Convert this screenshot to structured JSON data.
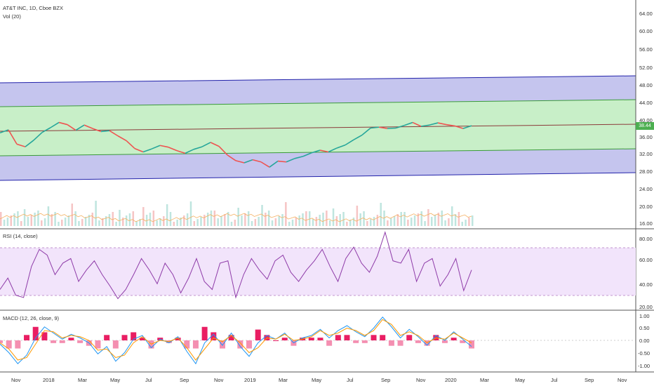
{
  "header": {
    "symbol_line": "AT&T INC, 1D, Cboe BZX",
    "volume_label": "Vol (20)"
  },
  "last_price": "38.44",
  "colors": {
    "outer_band": "#c5c5ee",
    "inner_band": "#c8efc8",
    "outer_line": "#2222aa",
    "inner_line": "#3a9a3a",
    "median_line": "#8b3a3a",
    "rsi_line": "#8e3ba8",
    "rsi_band": "#f2e4fb",
    "macd_line": "#2196f3",
    "signal_line": "#ff9800",
    "histogram": "#e91e63",
    "price_badge": "#4caf50"
  },
  "price_pane": {
    "axis_ticks": [
      "64.00",
      "60.00",
      "56.00",
      "52.00",
      "48.00",
      "44.00",
      "40.00",
      "36.00",
      "32.00",
      "28.00",
      "24.00",
      "20.00",
      "16.00"
    ],
    "ylim": [
      16,
      64
    ]
  },
  "rsi_pane": {
    "label": "RSI (14, close)",
    "axis_ticks": [
      "80.00",
      "60.00",
      "40.00",
      "20.00"
    ],
    "ylim": [
      20,
      80
    ]
  },
  "macd_pane": {
    "label": "MACD (12, 26, close, 9)",
    "axis_ticks": [
      "1.00",
      "0.50",
      "0.00",
      "-0.50",
      "-1.00"
    ],
    "ylim": [
      -1.2,
      1.1
    ]
  },
  "time_axis": {
    "labels": [
      "Nov",
      "2018",
      "Mar",
      "May",
      "Jul",
      "Sep",
      "Nov",
      "2019",
      "Mar",
      "May",
      "Jul",
      "Sep",
      "Nov",
      "2020",
      "Mar",
      "May",
      "Jul",
      "Sep",
      "Nov"
    ]
  },
  "chart_data": [
    {
      "type": "line",
      "title": "AT&T INC, 1D, Cboe BZX",
      "series": [
        {
          "values": [
            36.8,
            37.5,
            34.2,
            33.6,
            35.1,
            36.9,
            38.0,
            39.2,
            38.7,
            37.4,
            38.6,
            37.8,
            37.1,
            37.3,
            36.1,
            35.0,
            33.2,
            32.4,
            33.1,
            33.9,
            33.5,
            32.7,
            32.1,
            33.0,
            33.6,
            34.6,
            33.7,
            31.7,
            30.4,
            29.9,
            30.6,
            30.1,
            28.9,
            30.3,
            30.1,
            30.9,
            31.4,
            32.2,
            32.8,
            32.4,
            33.3,
            34.0,
            35.2,
            36.3,
            37.9,
            38.1,
            37.8,
            37.9,
            38.5,
            39.2,
            38.3,
            38.6,
            39.1,
            38.7,
            38.4,
            37.8,
            38.44
          ]
        }
      ],
      "ylim": [
        16,
        64
      ]
    },
    {
      "type": "line",
      "title": "RSI (14, close)",
      "series": [
        {
          "values": [
            35,
            45,
            30,
            28,
            55,
            70,
            65,
            48,
            58,
            62,
            42,
            52,
            60,
            48,
            38,
            27,
            35,
            48,
            62,
            52,
            40,
            58,
            48,
            32,
            45,
            62,
            42,
            35,
            58,
            60,
            28,
            48,
            62,
            52,
            44,
            60,
            65,
            50,
            42,
            52,
            60,
            70,
            55,
            42,
            62,
            72,
            58,
            50,
            64,
            85,
            60,
            58,
            70,
            42,
            58,
            62,
            38,
            48,
            62,
            34,
            52
          ]
        }
      ],
      "ylim": [
        20,
        80
      ]
    },
    {
      "type": "line",
      "title": "MACD (12, 26, close, 9)",
      "series": [
        {
          "values": [
            -0.15,
            -0.5,
            -0.95,
            -0.6,
            0.1,
            0.55,
            0.3,
            0.05,
            0.25,
            0.1,
            -0.1,
            -0.55,
            -0.25,
            -0.85,
            -0.5,
            0.05,
            0.2,
            -0.3,
            0.05,
            -0.1,
            0.15,
            -0.45,
            -0.95,
            -0.1,
            0.25,
            -0.2,
            0.3,
            -0.25,
            -0.65,
            -0.1,
            0.2,
            0.05,
            0.3,
            -0.1,
            0.1,
            0.2,
            0.45,
            0.1,
            0.4,
            0.6,
            0.35,
            0.15,
            0.5,
            0.95,
            0.55,
            0.1,
            0.45,
            0.15,
            -0.2,
            0.2,
            0.0,
            0.35,
            0.05,
            -0.25
          ]
        },
        {
          "values": [
            -0.1,
            -0.35,
            -0.8,
            -0.7,
            -0.15,
            0.4,
            0.35,
            0.1,
            0.2,
            0.15,
            0.0,
            -0.4,
            -0.35,
            -0.7,
            -0.6,
            -0.1,
            0.15,
            -0.15,
            0.0,
            -0.05,
            0.1,
            -0.3,
            -0.8,
            -0.35,
            0.1,
            -0.05,
            0.2,
            -0.1,
            -0.5,
            -0.3,
            0.1,
            0.05,
            0.25,
            0.0,
            0.05,
            0.15,
            0.4,
            0.2,
            0.3,
            0.5,
            0.4,
            0.2,
            0.4,
            0.85,
            0.65,
            0.2,
            0.35,
            0.2,
            -0.1,
            0.1,
            0.05,
            0.3,
            0.1,
            -0.1
          ]
        }
      ],
      "ylim": [
        -1.2,
        1.1
      ]
    }
  ]
}
